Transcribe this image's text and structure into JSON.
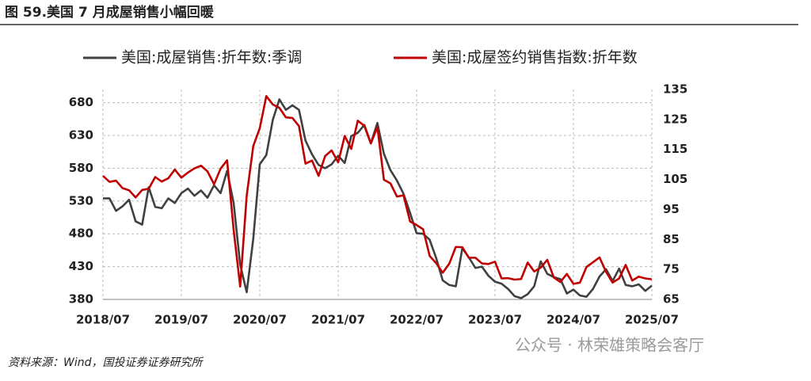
{
  "chart_data": {
    "type": "line",
    "title": "图 59.美国 7 月成屋销售小幅回暖",
    "source": "资料来源：Wind，国投证券证券研究所",
    "watermark": "公众号 · 林荣雄策略会客厅",
    "categories": [
      "2018/07",
      null,
      null,
      null,
      null,
      null,
      null,
      null,
      null,
      null,
      null,
      null,
      "2019/07",
      null,
      null,
      null,
      null,
      null,
      null,
      null,
      null,
      null,
      null,
      null,
      "2020/07",
      null,
      null,
      null,
      null,
      null,
      null,
      null,
      null,
      null,
      null,
      null,
      "2021/07",
      null,
      null,
      null,
      null,
      null,
      null,
      null,
      null,
      null,
      null,
      null,
      "2022/07",
      null,
      null,
      null,
      null,
      null,
      null,
      null,
      null,
      null,
      null,
      null,
      "2023/07",
      null,
      null,
      null,
      null,
      null,
      null,
      null,
      null,
      null,
      null,
      null,
      "2024/07",
      null,
      null,
      null,
      null,
      null,
      null,
      null,
      null,
      null,
      null,
      null,
      "2025/07"
    ],
    "series": [
      {
        "name": "美国:成屋销售:折年数:季调",
        "color": "#404040",
        "axis": "y",
        "values": [
          534,
          534,
          515,
          522,
          532,
          499,
          494,
          551,
          521,
          519,
          534,
          527,
          542,
          549,
          538,
          546,
          535,
          554,
          542,
          576,
          527,
          433,
          391,
          472,
          586,
          600,
          654,
          685,
          669,
          676,
          669,
          622,
          601,
          585,
          580,
          586,
          599,
          588,
          629,
          634,
          646,
          618,
          649,
          602,
          577,
          561,
          541,
          512,
          481,
          480,
          471,
          443,
          409,
          402,
          400,
          458,
          444,
          428,
          430,
          416,
          407,
          404,
          396,
          385,
          382,
          388,
          400,
          438,
          419,
          414,
          411,
          389,
          395,
          386,
          384,
          396,
          415,
          426,
          408,
          427,
          402,
          400,
          403,
          393,
          401
        ]
      },
      {
        "name": "美国:成屋签约销售指数:折年数",
        "color": "#c00000",
        "axis": "y2",
        "values": [
          106.2,
          104.2,
          104.6,
          102.1,
          101.4,
          99.0,
          101.5,
          101.9,
          105.8,
          104.3,
          105.4,
          108.3,
          105.6,
          107.3,
          108.7,
          109.6,
          107.7,
          103.4,
          108.6,
          111.4,
          88.2,
          69.3,
          99.6,
          116.1,
          122.1,
          132.8,
          130.0,
          128.9,
          125.7,
          125.5,
          122.8,
          110.3,
          111.3,
          106.2,
          112.8,
          114.7,
          110.7,
          119.5,
          115.2,
          124.6,
          122.9,
          117.0,
          122.5,
          104.9,
          103.7,
          99.3,
          99.7,
          91.0,
          89.8,
          88.4,
          79.5,
          77.1,
          73.9,
          76.9,
          82.5,
          82.4,
          78.9,
          78.9,
          77.0,
          76.8,
          77.6,
          72.0,
          72.1,
          71.6,
          71.8,
          77.3,
          74.3,
          75.6,
          78.2,
          72.3,
          70.8,
          73.5,
          70.2,
          70.6,
          75.8,
          77.4,
          79.0,
          74.2,
          70.6,
          72.0,
          76.5,
          71.3,
          72.6,
          72.0,
          71.7
        ]
      }
    ],
    "ylim": [
      380,
      700
    ],
    "yticks": [
      380,
      430,
      480,
      530,
      580,
      630,
      680
    ],
    "y2lim": [
      65,
      135
    ],
    "y2ticks": [
      65,
      75,
      85,
      95,
      105,
      115,
      125,
      135
    ],
    "grid": true
  }
}
